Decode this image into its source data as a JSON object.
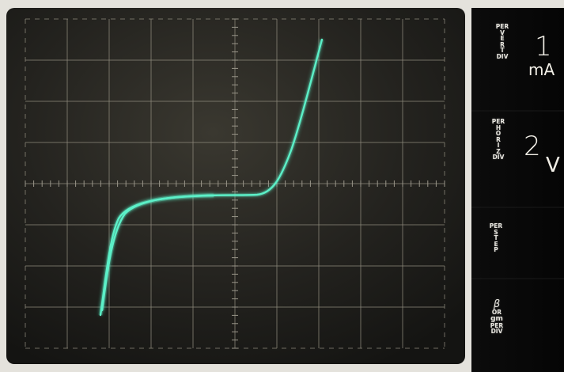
{
  "readouts": {
    "vert": {
      "caption": [
        "PER",
        "V",
        "E",
        "R",
        "T",
        "DIV"
      ],
      "value": "1",
      "unit": "mA"
    },
    "horiz": {
      "caption": [
        "PER",
        "H",
        "O",
        "R",
        "I",
        "Z",
        "DIV"
      ],
      "value": "2",
      "unit": "V"
    },
    "step": {
      "caption": [
        "PER",
        "S",
        "T",
        "E",
        "P"
      ]
    },
    "beta": {
      "caption": [
        "β",
        "OR",
        "gm",
        "PER",
        "DIV"
      ]
    }
  },
  "graticule": {
    "divisions_x": 10,
    "divisions_y": 8,
    "trace_color": "#5cf0c8"
  }
}
